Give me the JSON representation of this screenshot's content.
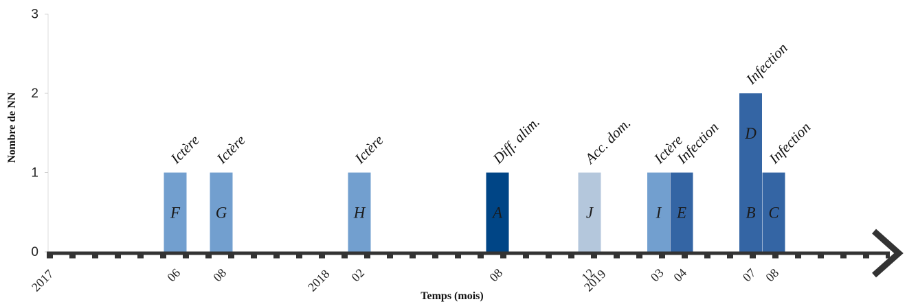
{
  "chart_data": {
    "type": "bar",
    "xlabel": "Temps (mois)",
    "ylabel": "Nombre de NN",
    "ylim": [
      0,
      3
    ],
    "yticks": [
      "0",
      "1",
      "2",
      "3"
    ],
    "year_labels": [
      "2017",
      "2018",
      "2019"
    ],
    "x_tick_labels": [
      "06",
      "08",
      "02",
      "08",
      "12",
      "03",
      "04",
      "07",
      "08"
    ],
    "bars": [
      {
        "date": "2017-06",
        "value": 1,
        "color": "#729fcf",
        "annotation": "Ictère",
        "cases": [
          "F"
        ]
      },
      {
        "date": "2017-08",
        "value": 1,
        "color": "#729fcf",
        "annotation": "Ictère",
        "cases": [
          "G"
        ]
      },
      {
        "date": "2018-02",
        "value": 1,
        "color": "#729fcf",
        "annotation": "Ictère",
        "cases": [
          "H"
        ]
      },
      {
        "date": "2018-08",
        "value": 1,
        "color": "#004586",
        "annotation": "Diff. alim.",
        "cases": [
          "A"
        ]
      },
      {
        "date": "2018-12",
        "value": 1,
        "color": "#b4c7dc",
        "annotation": "Acc. dom.",
        "cases": [
          "J"
        ]
      },
      {
        "date": "2019-03",
        "value": 1,
        "color": "#729fcf",
        "annotation": "Ictère",
        "cases": [
          "I"
        ]
      },
      {
        "date": "2019-04",
        "value": 1,
        "color": "#3465a4",
        "annotation": "Infection",
        "cases": [
          "E"
        ]
      },
      {
        "date": "2019-07",
        "value": 2,
        "color": "#3465a4",
        "annotation": "Infection",
        "cases": [
          "B",
          "D"
        ]
      },
      {
        "date": "2019-08",
        "value": 1,
        "color": "#3465a4",
        "annotation": "Infection",
        "cases": [
          "C"
        ]
      }
    ]
  }
}
